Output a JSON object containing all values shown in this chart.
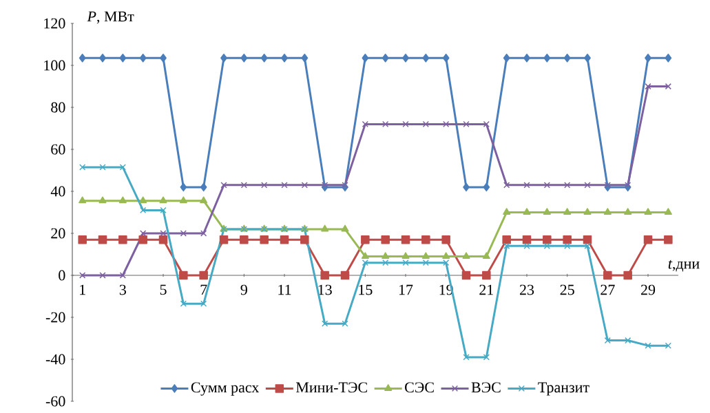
{
  "chart_data": {
    "type": "line",
    "xlabel": "*t*,дни",
    "ylabel": "*P*, МВт",
    "x": [
      1,
      2,
      3,
      4,
      5,
      6,
      7,
      8,
      9,
      10,
      11,
      12,
      13,
      14,
      15,
      16,
      17,
      18,
      19,
      20,
      21,
      22,
      23,
      24,
      25,
      26,
      27,
      28,
      29,
      30
    ],
    "xlim": [
      0.5,
      30.5
    ],
    "xticks": [
      1,
      3,
      5,
      7,
      9,
      11,
      13,
      15,
      17,
      19,
      21,
      23,
      25,
      27,
      29
    ],
    "ylim": [
      -60,
      120
    ],
    "yticks": [
      -60,
      -40,
      -20,
      0,
      20,
      40,
      60,
      80,
      100,
      120
    ],
    "legend": "bottom",
    "line_style": "solid",
    "series": [
      {
        "name": "Сумм расх",
        "color": "#4a7ebb",
        "marker": "diamond",
        "values": [
          103.5,
          103.5,
          103.5,
          103.5,
          103.5,
          42,
          42,
          103.5,
          103.5,
          103.5,
          103.5,
          103.5,
          42,
          42,
          103.5,
          103.5,
          103.5,
          103.5,
          103.5,
          42,
          42,
          103.5,
          103.5,
          103.5,
          103.5,
          103.5,
          42,
          42,
          103.5,
          103.5
        ]
      },
      {
        "name": "Мини-ТЭС",
        "color": "#be4b48",
        "marker": "square",
        "values": [
          17,
          17,
          17,
          17,
          17,
          0,
          0,
          17,
          17,
          17,
          17,
          17,
          0,
          0,
          17,
          17,
          17,
          17,
          17,
          0,
          0,
          17,
          17,
          17,
          17,
          17,
          0,
          0,
          17,
          17
        ]
      },
      {
        "name": "СЭС",
        "color": "#98b954",
        "marker": "triangle",
        "values": [
          35.5,
          35.5,
          35.5,
          35.5,
          35.5,
          35.5,
          35.5,
          22,
          22,
          22,
          22,
          22,
          22,
          22,
          9,
          9,
          9,
          9,
          9,
          9,
          9,
          30,
          30,
          30,
          30,
          30,
          30,
          30,
          30,
          30
        ]
      },
      {
        "name": "ВЭС",
        "color": "#7d60a0",
        "marker": "cross",
        "values": [
          0,
          0,
          0,
          20,
          20,
          20,
          20,
          43,
          43,
          43,
          43,
          43,
          43,
          43,
          72,
          72,
          72,
          72,
          72,
          72,
          72,
          43,
          43,
          43,
          43,
          43,
          43,
          43,
          90,
          90
        ]
      },
      {
        "name": "Транзит",
        "color": "#46aac5",
        "marker": "cross",
        "values": [
          51.5,
          51.5,
          51.5,
          31,
          31,
          -13.5,
          -13.5,
          22,
          22,
          22,
          22,
          22,
          -23,
          -23,
          6,
          6,
          6,
          6,
          6,
          -39,
          -39,
          14,
          14,
          14,
          14,
          14,
          -31,
          -31,
          -33.5,
          -33.5
        ]
      }
    ]
  }
}
